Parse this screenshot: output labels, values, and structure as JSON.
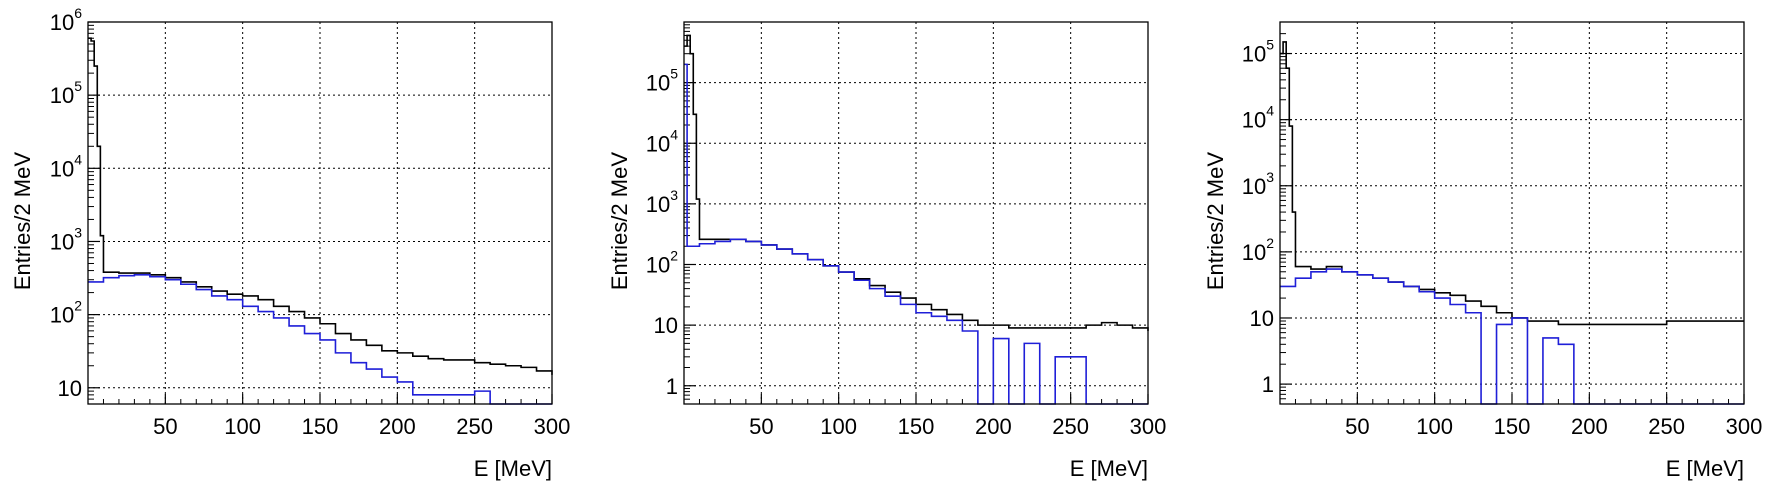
{
  "chart_data": [
    {
      "type": "histogram",
      "ylabel": "Entries/2 MeV",
      "xlabel": "E [MeV]",
      "xlim": [
        0,
        300
      ],
      "ylim": [
        6,
        1000000
      ],
      "yscale": "log",
      "grid": true,
      "x_ticks": [
        "50",
        "100",
        "150",
        "200",
        "250",
        "300"
      ],
      "y_ticks": [
        {
          "base": "10",
          "exp": ""
        },
        {
          "base": "10",
          "exp": "2"
        },
        {
          "base": "10",
          "exp": "3"
        },
        {
          "base": "10",
          "exp": "4"
        },
        {
          "base": "10",
          "exp": "5"
        },
        {
          "base": "10",
          "exp": "6"
        }
      ],
      "series": [
        {
          "color": "#000000",
          "points": [
            [
              0,
              600000
            ],
            [
              2,
              550000
            ],
            [
              4,
              250000
            ],
            [
              6,
              20000
            ],
            [
              8,
              1200
            ],
            [
              10,
              380
            ],
            [
              20,
              370
            ],
            [
              30,
              370
            ],
            [
              40,
              350
            ],
            [
              50,
              320
            ],
            [
              60,
              280
            ],
            [
              70,
              240
            ],
            [
              80,
              210
            ],
            [
              90,
              190
            ],
            [
              100,
              180
            ],
            [
              110,
              160
            ],
            [
              120,
              130
            ],
            [
              130,
              110
            ],
            [
              140,
              90
            ],
            [
              150,
              75
            ],
            [
              160,
              55
            ],
            [
              170,
              45
            ],
            [
              180,
              38
            ],
            [
              190,
              32
            ],
            [
              200,
              30
            ],
            [
              210,
              27
            ],
            [
              220,
              25
            ],
            [
              230,
              24
            ],
            [
              240,
              24
            ],
            [
              250,
              22
            ],
            [
              260,
              21
            ],
            [
              270,
              20
            ],
            [
              280,
              19
            ],
            [
              290,
              17
            ],
            [
              300,
              15
            ]
          ]
        },
        {
          "color": "#1f1fd8",
          "points": [
            [
              0,
              280
            ],
            [
              10,
              320
            ],
            [
              20,
              340
            ],
            [
              30,
              350
            ],
            [
              40,
              330
            ],
            [
              50,
              300
            ],
            [
              60,
              260
            ],
            [
              70,
              220
            ],
            [
              80,
              180
            ],
            [
              90,
              160
            ],
            [
              100,
              130
            ],
            [
              110,
              110
            ],
            [
              120,
              90
            ],
            [
              130,
              70
            ],
            [
              140,
              55
            ],
            [
              150,
              45
            ],
            [
              160,
              30
            ],
            [
              170,
              22
            ],
            [
              180,
              18
            ],
            [
              190,
              14
            ],
            [
              200,
              12
            ],
            [
              210,
              8
            ],
            [
              220,
              8
            ],
            [
              230,
              8
            ],
            [
              240,
              8
            ],
            [
              250,
              9
            ],
            [
              260,
              6
            ],
            [
              270,
              6
            ],
            [
              280,
              6
            ],
            [
              290,
              6
            ],
            [
              300,
              6
            ]
          ]
        }
      ]
    },
    {
      "type": "histogram",
      "ylabel": "Entries/2 MeV",
      "xlabel": "E [MeV]",
      "xlim": [
        0,
        300
      ],
      "ylim": [
        0.5,
        1000000
      ],
      "yscale": "log",
      "grid": true,
      "x_ticks": [
        "50",
        "100",
        "150",
        "200",
        "250",
        "300"
      ],
      "y_ticks": [
        {
          "base": "1",
          "exp": ""
        },
        {
          "base": "10",
          "exp": ""
        },
        {
          "base": "10",
          "exp": "2"
        },
        {
          "base": "10",
          "exp": "3"
        },
        {
          "base": "10",
          "exp": "4"
        },
        {
          "base": "10",
          "exp": "5"
        }
      ],
      "series": [
        {
          "color": "#000000",
          "points": [
            [
              0,
              400000
            ],
            [
              2,
              600000
            ],
            [
              4,
              300000
            ],
            [
              6,
              30000
            ],
            [
              8,
              1200
            ],
            [
              10,
              260
            ],
            [
              20,
              260
            ],
            [
              30,
              260
            ],
            [
              40,
              240
            ],
            [
              50,
              210
            ],
            [
              60,
              180
            ],
            [
              70,
              150
            ],
            [
              80,
              120
            ],
            [
              90,
              95
            ],
            [
              100,
              75
            ],
            [
              110,
              58
            ],
            [
              120,
              45
            ],
            [
              130,
              35
            ],
            [
              140,
              28
            ],
            [
              150,
              22
            ],
            [
              160,
              18
            ],
            [
              170,
              15
            ],
            [
              180,
              12
            ],
            [
              190,
              10
            ],
            [
              200,
              10
            ],
            [
              210,
              9
            ],
            [
              220,
              9
            ],
            [
              230,
              9
            ],
            [
              240,
              9
            ],
            [
              250,
              9
            ],
            [
              260,
              10
            ],
            [
              270,
              11
            ],
            [
              280,
              10
            ],
            [
              290,
              9
            ],
            [
              300,
              8
            ]
          ]
        },
        {
          "color": "#1f1fd8",
          "points": [
            [
              0,
              200000
            ],
            [
              2,
              200
            ],
            [
              10,
              220
            ],
            [
              20,
              240
            ],
            [
              30,
              260
            ],
            [
              40,
              240
            ],
            [
              50,
              210
            ],
            [
              60,
              180
            ],
            [
              70,
              150
            ],
            [
              80,
              120
            ],
            [
              90,
              95
            ],
            [
              100,
              75
            ],
            [
              110,
              55
            ],
            [
              120,
              40
            ],
            [
              130,
              30
            ],
            [
              140,
              22
            ],
            [
              150,
              16
            ],
            [
              160,
              14
            ],
            [
              170,
              12
            ],
            [
              180,
              8
            ],
            [
              190,
              0.5
            ],
            [
              200,
              6
            ],
            [
              210,
              0.5
            ],
            [
              220,
              5
            ],
            [
              230,
              0.5
            ],
            [
              240,
              3
            ],
            [
              250,
              3
            ],
            [
              260,
              0.5
            ],
            [
              270,
              0.5
            ],
            [
              280,
              0.5
            ],
            [
              290,
              0.5
            ],
            [
              300,
              0.5
            ]
          ]
        }
      ]
    },
    {
      "type": "histogram",
      "ylabel": "Entries/2 MeV",
      "xlabel": "E [MeV]",
      "xlim": [
        0,
        300
      ],
      "ylim": [
        0.5,
        300000
      ],
      "yscale": "log",
      "grid": true,
      "x_ticks": [
        "50",
        "100",
        "150",
        "200",
        "250",
        "300"
      ],
      "y_ticks": [
        {
          "base": "1",
          "exp": ""
        },
        {
          "base": "10",
          "exp": ""
        },
        {
          "base": "10",
          "exp": "2"
        },
        {
          "base": "10",
          "exp": "3"
        },
        {
          "base": "10",
          "exp": "4"
        },
        {
          "base": "10",
          "exp": "5"
        }
      ],
      "series": [
        {
          "color": "#000000",
          "points": [
            [
              0,
              100000
            ],
            [
              2,
              150000
            ],
            [
              4,
              60000
            ],
            [
              6,
              8000
            ],
            [
              8,
              400
            ],
            [
              10,
              60
            ],
            [
              20,
              55
            ],
            [
              30,
              60
            ],
            [
              40,
              50
            ],
            [
              50,
              45
            ],
            [
              60,
              40
            ],
            [
              70,
              35
            ],
            [
              80,
              30
            ],
            [
              90,
              27
            ],
            [
              100,
              24
            ],
            [
              110,
              22
            ],
            [
              120,
              18
            ],
            [
              130,
              15
            ],
            [
              140,
              12
            ],
            [
              150,
              10
            ],
            [
              160,
              9
            ],
            [
              170,
              9
            ],
            [
              180,
              8
            ],
            [
              190,
              8
            ],
            [
              200,
              8
            ],
            [
              210,
              8
            ],
            [
              220,
              8
            ],
            [
              230,
              8
            ],
            [
              240,
              8
            ],
            [
              250,
              9
            ],
            [
              260,
              9
            ],
            [
              270,
              9
            ],
            [
              280,
              9
            ],
            [
              290,
              9
            ],
            [
              300,
              9
            ]
          ]
        },
        {
          "color": "#1f1fd8",
          "points": [
            [
              0,
              30
            ],
            [
              10,
              40
            ],
            [
              20,
              50
            ],
            [
              30,
              55
            ],
            [
              40,
              50
            ],
            [
              50,
              45
            ],
            [
              60,
              40
            ],
            [
              70,
              35
            ],
            [
              80,
              30
            ],
            [
              90,
              25
            ],
            [
              100,
              20
            ],
            [
              110,
              16
            ],
            [
              120,
              12
            ],
            [
              130,
              0.5
            ],
            [
              140,
              8
            ],
            [
              150,
              10
            ],
            [
              160,
              0.5
            ],
            [
              170,
              5
            ],
            [
              180,
              4
            ],
            [
              190,
              0.5
            ],
            [
              200,
              0.5
            ],
            [
              210,
              0.5
            ],
            [
              220,
              0.5
            ],
            [
              230,
              0.5
            ],
            [
              240,
              0.5
            ],
            [
              250,
              0.5
            ],
            [
              260,
              0.5
            ],
            [
              270,
              0.5
            ],
            [
              280,
              0.5
            ],
            [
              290,
              0.5
            ],
            [
              300,
              0.5
            ]
          ]
        }
      ]
    }
  ]
}
